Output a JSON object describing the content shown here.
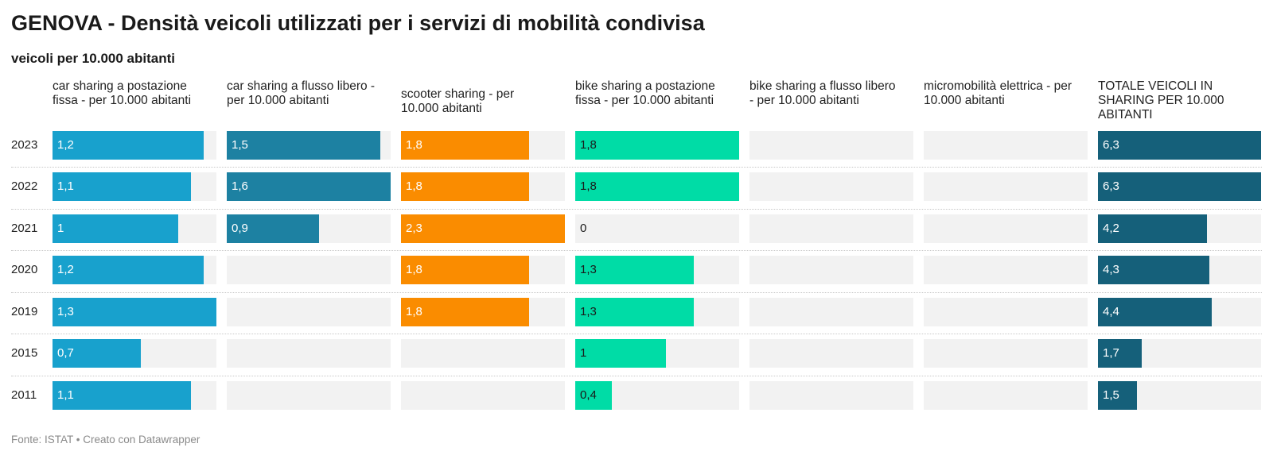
{
  "header": {
    "title": "GENOVA - Densità veicoli utilizzati per i servizi di mobilità condivisa",
    "subtitle": "veicoli per 10.000 abitanti"
  },
  "footer": {
    "source": "Fonte: ISTAT • Creato con Datawrapper"
  },
  "chart_data": {
    "type": "bar",
    "categories": [
      "2023",
      "2022",
      "2021",
      "2020",
      "2019",
      "2015",
      "2011"
    ],
    "series": [
      {
        "name": "car sharing a postazione fissa - per 10.000 abitanti",
        "color": "#18a1cd",
        "max": 1.3,
        "values": [
          1.2,
          1.1,
          1,
          1.2,
          1.3,
          0.7,
          1.1
        ],
        "labels": [
          "1,2",
          "1,1",
          "1",
          "1,2",
          "1,3",
          "0,7",
          "1,1"
        ]
      },
      {
        "name": "car sharing a flusso libero - per 10.000 abitanti",
        "color": "#1d81a2",
        "max": 1.6,
        "values": [
          1.5,
          1.6,
          0.9,
          null,
          null,
          null,
          null
        ],
        "labels": [
          "1,5",
          "1,6",
          "0,9",
          "",
          "",
          "",
          ""
        ]
      },
      {
        "name": "scooter sharing - per 10.000 abitanti",
        "color": "#fa8c00",
        "max": 2.3,
        "values": [
          1.8,
          1.8,
          2.3,
          1.8,
          1.8,
          null,
          null
        ],
        "labels": [
          "1,8",
          "1,8",
          "2,3",
          "1,8",
          "1,8",
          "",
          ""
        ]
      },
      {
        "name": "bike sharing a postazione fissa - per 10.000 abitanti",
        "color": "#00dca6",
        "max": 1.8,
        "darkText": true,
        "values": [
          1.8,
          1.8,
          0,
          1.3,
          1.3,
          1,
          0.4
        ],
        "labels": [
          "1,8",
          "1,8",
          "0",
          "1,3",
          "1,3",
          "1",
          "0,4"
        ]
      },
      {
        "name": "bike sharing a flusso libero - per 10.000 abitanti",
        "color": "#cccccc",
        "max": 1,
        "values": [
          null,
          null,
          null,
          null,
          null,
          null,
          null
        ],
        "labels": [
          "",
          "",
          "",
          "",
          "",
          "",
          ""
        ]
      },
      {
        "name": "micromobilità elettrica - per 10.000 abitanti",
        "color": "#cccccc",
        "max": 1,
        "values": [
          null,
          null,
          null,
          null,
          null,
          null,
          null
        ],
        "labels": [
          "",
          "",
          "",
          "",
          "",
          "",
          ""
        ]
      },
      {
        "name": "TOTALE VEICOLI IN SHARING PER 10.000 ABITANTI",
        "color": "#15607a",
        "max": 6.3,
        "values": [
          6.3,
          6.3,
          4.2,
          4.3,
          4.4,
          1.7,
          1.5
        ],
        "labels": [
          "6,3",
          "6,3",
          "4,2",
          "4,3",
          "4,4",
          "1,7",
          "1,5"
        ]
      }
    ]
  }
}
